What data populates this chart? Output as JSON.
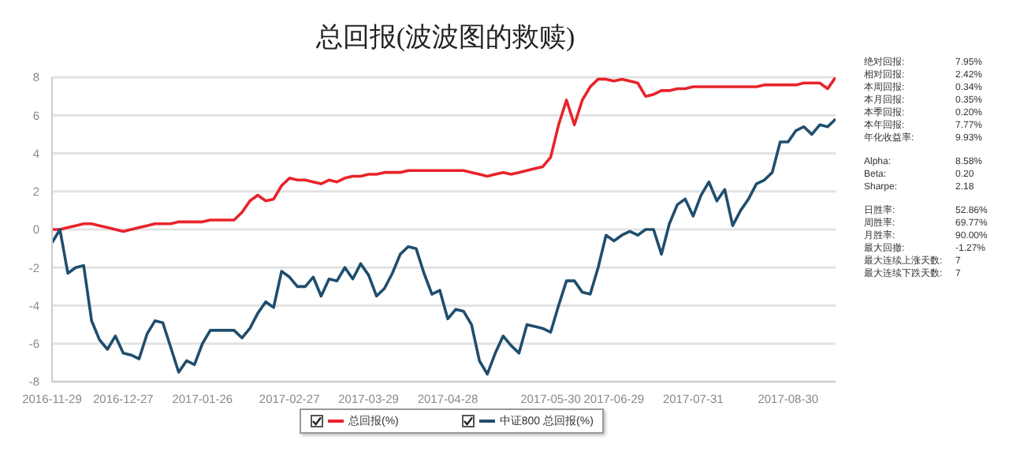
{
  "chart_data": {
    "type": "line",
    "title": "总回报(波波图的救赎)",
    "categories": [
      "2016-11-29",
      null,
      null,
      null,
      null,
      null,
      null,
      null,
      null,
      "2016-12-27",
      null,
      null,
      null,
      null,
      null,
      null,
      null,
      null,
      null,
      "2017-01-26",
      null,
      null,
      null,
      null,
      null,
      null,
      null,
      null,
      null,
      null,
      "2017-02-27",
      null,
      null,
      null,
      null,
      null,
      null,
      null,
      null,
      null,
      "2017-03-29",
      null,
      null,
      null,
      null,
      null,
      null,
      null,
      null,
      null,
      "2017-04-28",
      null,
      null,
      null,
      null,
      null,
      null,
      null,
      null,
      null,
      null,
      null,
      null,
      "2017-05-30",
      null,
      null,
      null,
      null,
      null,
      null,
      null,
      "2017-06-29",
      null,
      null,
      null,
      null,
      null,
      null,
      null,
      null,
      null,
      "2017-07-31",
      null,
      null,
      null,
      null,
      null,
      null,
      null,
      null,
      null,
      null,
      null,
      "2017-08-30",
      null,
      null,
      null,
      null,
      null,
      null
    ],
    "series": [
      {
        "name": "总回报(%)",
        "color": "#e8232b",
        "values": [
          0,
          0,
          0.1,
          0.2,
          0.3,
          0.3,
          0.2,
          0.1,
          0,
          -0.1,
          0,
          0.1,
          0.2,
          0.3,
          0.3,
          0.3,
          0.4,
          0.4,
          0.4,
          0.4,
          0.5,
          0.5,
          0.5,
          0.5,
          0.9,
          1.5,
          1.8,
          1.5,
          1.6,
          2.3,
          2.7,
          2.6,
          2.6,
          2.5,
          2.4,
          2.6,
          2.5,
          2.7,
          2.8,
          2.8,
          2.9,
          2.9,
          3.0,
          3.0,
          3.0,
          3.1,
          3.1,
          3.1,
          3.1,
          3.1,
          3.1,
          3.1,
          3.1,
          3.0,
          2.9,
          2.8,
          2.9,
          3.0,
          2.9,
          3.0,
          3.1,
          3.2,
          3.3,
          3.8,
          5.5,
          6.8,
          5.5,
          6.8,
          7.5,
          7.9,
          7.9,
          7.8,
          7.9,
          7.8,
          7.7,
          7.0,
          7.1,
          7.3,
          7.3,
          7.4,
          7.4,
          7.5,
          7.5,
          7.5,
          7.5,
          7.5,
          7.5,
          7.5,
          7.5,
          7.5,
          7.6,
          7.6,
          7.6,
          7.6,
          7.6,
          7.7,
          7.7,
          7.7,
          7.4,
          8.0
        ]
      },
      {
        "name": "中证800 总回报(%)",
        "color": "#1f4e6e",
        "values": [
          -0.7,
          0,
          -2.3,
          -2.0,
          -1.9,
          -4.8,
          -5.8,
          -6.3,
          -5.6,
          -6.5,
          -6.6,
          -6.8,
          -5.5,
          -4.8,
          -4.9,
          -6.2,
          -7.5,
          -6.9,
          -7.1,
          -6.0,
          -5.3,
          -5.3,
          -5.3,
          -5.3,
          -5.7,
          -5.2,
          -4.4,
          -3.8,
          -4.1,
          -2.2,
          -2.5,
          -3.0,
          -3.0,
          -2.5,
          -3.5,
          -2.6,
          -2.7,
          -2.0,
          -2.6,
          -1.8,
          -2.4,
          -3.5,
          -3.1,
          -2.3,
          -1.3,
          -0.9,
          -1.0,
          -2.3,
          -3.4,
          -3.2,
          -4.7,
          -4.2,
          -4.3,
          -5.0,
          -6.9,
          -7.6,
          -6.5,
          -5.6,
          -6.1,
          -6.5,
          -5.0,
          -5.1,
          -5.2,
          -5.4,
          -4.0,
          -2.7,
          -2.7,
          -3.3,
          -3.4,
          -2.0,
          -0.3,
          -0.6,
          -0.3,
          -0.1,
          -0.3,
          0,
          0,
          -1.3,
          0.3,
          1.3,
          1.6,
          0.7,
          1.8,
          2.5,
          1.5,
          2.1,
          0.2,
          1.0,
          1.6,
          2.4,
          2.6,
          3.0,
          4.6,
          4.6,
          5.2,
          5.4,
          5.0,
          5.5,
          5.4,
          5.8
        ]
      }
    ],
    "ylim": [
      -8,
      8
    ],
    "yticks": [
      -8,
      -6,
      -4,
      -2,
      0,
      2,
      4,
      6,
      8
    ],
    "grid": "y",
    "legend": "bottom",
    "marker": "none",
    "line_style": "solid",
    "annotations": [
      "绝对回报:",
      "7.95%",
      "相对回报:",
      "2.42%",
      "本周回报:",
      "0.34%",
      "本月回报:",
      "0.35%",
      "本季回报:",
      "0.20%",
      "本年回报:",
      "7.77%",
      "年化收益率:",
      "9.93%",
      "Alpha:",
      "8.58%",
      "Beta:",
      "0.20",
      "Sharpe:",
      "2.18",
      "日胜率:",
      "52.86%",
      "周胜率:",
      "69.77%",
      "月胜率:",
      "90.00%",
      "最大回撤:",
      "-1.27%",
      "最大连续上涨天数:",
      "7",
      "最大连续下跌天数:",
      "7"
    ]
  }
}
